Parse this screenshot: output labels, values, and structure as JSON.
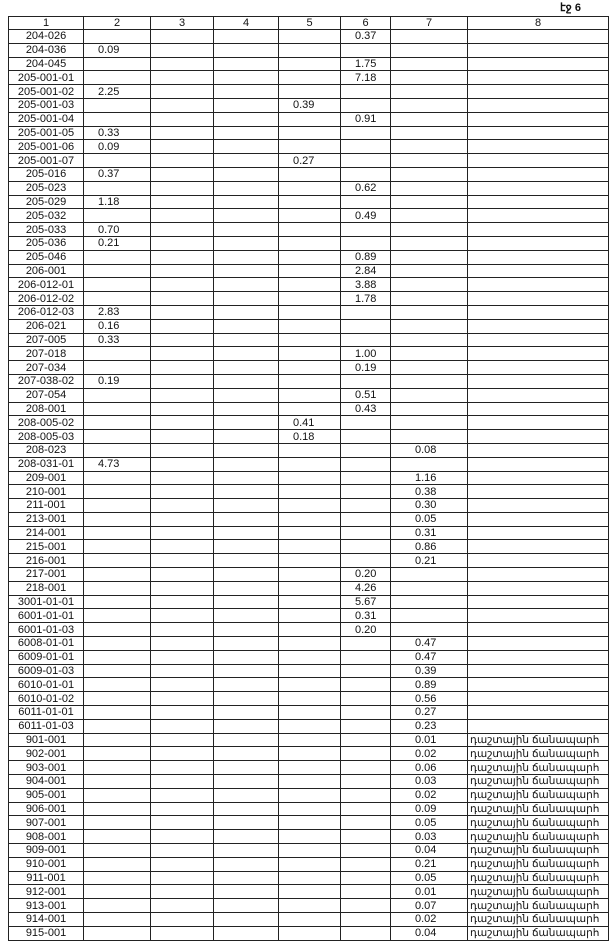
{
  "page_label": "էջ 6",
  "columns": [
    "1",
    "2",
    "3",
    "4",
    "5",
    "6",
    "7",
    "8"
  ],
  "rows": [
    [
      "204-026",
      "",
      "",
      "",
      "",
      "0.37",
      "",
      ""
    ],
    [
      "204-036",
      "0.09",
      "",
      "",
      "",
      "",
      "",
      ""
    ],
    [
      "204-045",
      "",
      "",
      "",
      "",
      "1.75",
      "",
      ""
    ],
    [
      "205-001-01",
      "",
      "",
      "",
      "",
      "7.18",
      "",
      ""
    ],
    [
      "205-001-02",
      "2.25",
      "",
      "",
      "",
      "",
      "",
      ""
    ],
    [
      "205-001-03",
      "",
      "",
      "",
      "0.39",
      "",
      "",
      ""
    ],
    [
      "205-001-04",
      "",
      "",
      "",
      "",
      "0.91",
      "",
      ""
    ],
    [
      "205-001-05",
      "0.33",
      "",
      "",
      "",
      "",
      "",
      ""
    ],
    [
      "205-001-06",
      "0.09",
      "",
      "",
      "",
      "",
      "",
      ""
    ],
    [
      "205-001-07",
      "",
      "",
      "",
      "0.27",
      "",
      "",
      ""
    ],
    [
      "205-016",
      "0.37",
      "",
      "",
      "",
      "",
      "",
      ""
    ],
    [
      "205-023",
      "",
      "",
      "",
      "",
      "0.62",
      "",
      ""
    ],
    [
      "205-029",
      "1.18",
      "",
      "",
      "",
      "",
      "",
      ""
    ],
    [
      "205-032",
      "",
      "",
      "",
      "",
      "0.49",
      "",
      ""
    ],
    [
      "205-033",
      "0.70",
      "",
      "",
      "",
      "",
      "",
      ""
    ],
    [
      "205-036",
      "0.21",
      "",
      "",
      "",
      "",
      "",
      ""
    ],
    [
      "205-046",
      "",
      "",
      "",
      "",
      "0.89",
      "",
      ""
    ],
    [
      "206-001",
      "",
      "",
      "",
      "",
      "2.84",
      "",
      ""
    ],
    [
      "206-012-01",
      "",
      "",
      "",
      "",
      "3.88",
      "",
      ""
    ],
    [
      "206-012-02",
      "",
      "",
      "",
      "",
      "1.78",
      "",
      ""
    ],
    [
      "206-012-03",
      "2.83",
      "",
      "",
      "",
      "",
      "",
      ""
    ],
    [
      "206-021",
      "0.16",
      "",
      "",
      "",
      "",
      "",
      ""
    ],
    [
      "207-005",
      "0.33",
      "",
      "",
      "",
      "",
      "",
      ""
    ],
    [
      "207-018",
      "",
      "",
      "",
      "",
      "1.00",
      "",
      ""
    ],
    [
      "207-034",
      "",
      "",
      "",
      "",
      "0.19",
      "",
      ""
    ],
    [
      "207-038-02",
      "0.19",
      "",
      "",
      "",
      "",
      "",
      ""
    ],
    [
      "207-054",
      "",
      "",
      "",
      "",
      "0.51",
      "",
      ""
    ],
    [
      "208-001",
      "",
      "",
      "",
      "",
      "0.43",
      "",
      ""
    ],
    [
      "208-005-02",
      "",
      "",
      "",
      "0.41",
      "",
      "",
      ""
    ],
    [
      "208-005-03",
      "",
      "",
      "",
      "0.18",
      "",
      "",
      ""
    ],
    [
      "208-023",
      "",
      "",
      "",
      "",
      "",
      "0.08",
      ""
    ],
    [
      "208-031-01",
      "4.73",
      "",
      "",
      "",
      "",
      "",
      ""
    ],
    [
      "209-001",
      "",
      "",
      "",
      "",
      "",
      "1.16",
      ""
    ],
    [
      "210-001",
      "",
      "",
      "",
      "",
      "",
      "0.38",
      ""
    ],
    [
      "211-001",
      "",
      "",
      "",
      "",
      "",
      "0.30",
      ""
    ],
    [
      "213-001",
      "",
      "",
      "",
      "",
      "",
      "0.05",
      ""
    ],
    [
      "214-001",
      "",
      "",
      "",
      "",
      "",
      "0.31",
      ""
    ],
    [
      "215-001",
      "",
      "",
      "",
      "",
      "",
      "0.86",
      ""
    ],
    [
      "216-001",
      "",
      "",
      "",
      "",
      "",
      "0.21",
      ""
    ],
    [
      "217-001",
      "",
      "",
      "",
      "",
      "0.20",
      "",
      ""
    ],
    [
      "218-001",
      "",
      "",
      "",
      "",
      "4.26",
      "",
      ""
    ],
    [
      "3001-01-01",
      "",
      "",
      "",
      "",
      "5.67",
      "",
      ""
    ],
    [
      "6001-01-01",
      "",
      "",
      "",
      "",
      "0.31",
      "",
      ""
    ],
    [
      "6001-01-03",
      "",
      "",
      "",
      "",
      "0.20",
      "",
      ""
    ],
    [
      "6008-01-01",
      "",
      "",
      "",
      "",
      "",
      "0.47",
      ""
    ],
    [
      "6009-01-01",
      "",
      "",
      "",
      "",
      "",
      "0.47",
      ""
    ],
    [
      "6009-01-03",
      "",
      "",
      "",
      "",
      "",
      "0.39",
      ""
    ],
    [
      "6010-01-01",
      "",
      "",
      "",
      "",
      "",
      "0.89",
      ""
    ],
    [
      "6010-01-02",
      "",
      "",
      "",
      "",
      "",
      "0.56",
      ""
    ],
    [
      "6011-01-01",
      "",
      "",
      "",
      "",
      "",
      "0.27",
      ""
    ],
    [
      "6011-01-03",
      "",
      "",
      "",
      "",
      "",
      "0.23",
      ""
    ],
    [
      "901-001",
      "",
      "",
      "",
      "",
      "",
      "0.01",
      "դաշտային ճանապարհ"
    ],
    [
      "902-001",
      "",
      "",
      "",
      "",
      "",
      "0.02",
      "դաշտային ճանապարհ"
    ],
    [
      "903-001",
      "",
      "",
      "",
      "",
      "",
      "0.06",
      "դաշտային ճանապարհ"
    ],
    [
      "904-001",
      "",
      "",
      "",
      "",
      "",
      "0.03",
      "դաշտային ճանապարհ"
    ],
    [
      "905-001",
      "",
      "",
      "",
      "",
      "",
      "0.02",
      "դաշտային ճանապարհ"
    ],
    [
      "906-001",
      "",
      "",
      "",
      "",
      "",
      "0.09",
      "դաշտային ճանապարհ"
    ],
    [
      "907-001",
      "",
      "",
      "",
      "",
      "",
      "0.05",
      "դաշտային ճանապարհ"
    ],
    [
      "908-001",
      "",
      "",
      "",
      "",
      "",
      "0.03",
      "դաշտային ճանապարհ"
    ],
    [
      "909-001",
      "",
      "",
      "",
      "",
      "",
      "0.04",
      "դաշտային ճանապարհ"
    ],
    [
      "910-001",
      "",
      "",
      "",
      "",
      "",
      "0.21",
      "դաշտային ճանապարհ"
    ],
    [
      "911-001",
      "",
      "",
      "",
      "",
      "",
      "0.05",
      "դաշտային ճանապարհ"
    ],
    [
      "912-001",
      "",
      "",
      "",
      "",
      "",
      "0.01",
      "դաշտային ճանապարհ"
    ],
    [
      "913-001",
      "",
      "",
      "",
      "",
      "",
      "0.07",
      "դաշտային ճանապարհ"
    ],
    [
      "914-001",
      "",
      "",
      "",
      "",
      "",
      "0.02",
      "դաշտային ճանապարհ"
    ],
    [
      "915-001",
      "",
      "",
      "",
      "",
      "",
      "0.04",
      "դաշտային ճանապարհ"
    ]
  ]
}
